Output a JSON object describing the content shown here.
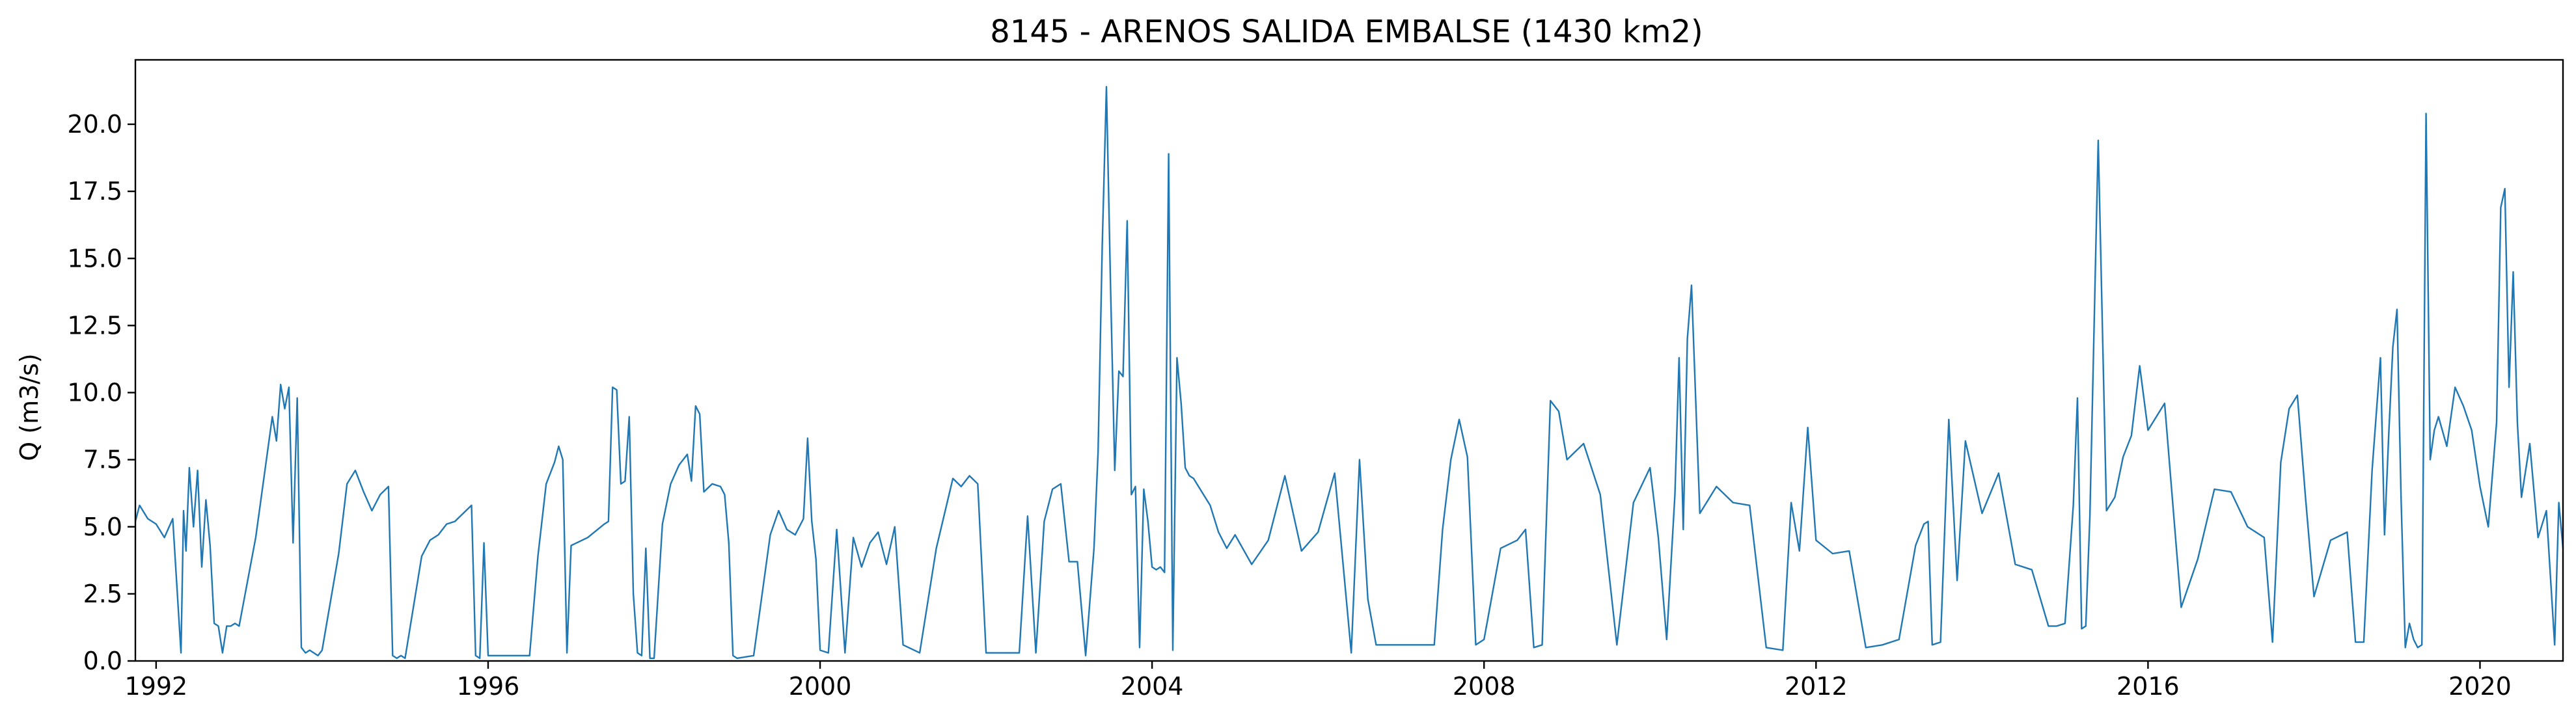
{
  "chart_data": {
    "type": "line",
    "title": "8145 - ARENOS SALIDA EMBALSE (1430 km2)",
    "xlabel": "",
    "ylabel": "Q (m3/s)",
    "xlim": [
      1991.75,
      2021.0
    ],
    "ylim": [
      0.0,
      22.4
    ],
    "xticks": [
      1992,
      1996,
      2000,
      2004,
      2008,
      2012,
      2016,
      2020
    ],
    "xtick_labels": [
      "1992",
      "1996",
      "2000",
      "2004",
      "2008",
      "2012",
      "2016",
      "2020"
    ],
    "yticks": [
      0.0,
      2.5,
      5.0,
      7.5,
      10.0,
      12.5,
      15.0,
      17.5,
      20.0
    ],
    "ytick_labels": [
      "0.0",
      "2.5",
      "5.0",
      "7.5",
      "10.0",
      "12.5",
      "15.0",
      "17.5",
      "20.0"
    ],
    "grid": false,
    "series": [
      {
        "color": "#1f77b4",
        "x": [
          1991.75,
          1991.8,
          1991.9,
          1992.0,
          1992.1,
          1992.2,
          1992.3,
          1992.33,
          1992.36,
          1992.4,
          1992.45,
          1992.5,
          1992.55,
          1992.6,
          1992.65,
          1992.7,
          1992.75,
          1992.8,
          1992.85,
          1992.9,
          1992.95,
          1993.0,
          1993.2,
          1993.4,
          1993.45,
          1993.5,
          1993.55,
          1993.6,
          1993.65,
          1993.7,
          1993.75,
          1993.8,
          1993.85,
          1993.9,
          1993.95,
          1994.0,
          1994.2,
          1994.3,
          1994.4,
          1994.5,
          1994.6,
          1994.7,
          1994.8,
          1994.85,
          1994.9,
          1994.95,
          1995.0,
          1995.2,
          1995.3,
          1995.4,
          1995.5,
          1995.6,
          1995.7,
          1995.8,
          1995.85,
          1995.9,
          1995.95,
          1996.0,
          1996.2,
          1996.5,
          1996.6,
          1996.7,
          1996.8,
          1996.85,
          1996.9,
          1996.95,
          1997.0,
          1997.2,
          1997.4,
          1997.45,
          1997.5,
          1997.55,
          1997.6,
          1997.65,
          1997.7,
          1997.75,
          1997.8,
          1997.85,
          1997.9,
          1997.95,
          1998.0,
          1998.1,
          1998.2,
          1998.3,
          1998.4,
          1998.45,
          1998.5,
          1998.55,
          1998.6,
          1998.7,
          1998.8,
          1998.85,
          1998.9,
          1998.95,
          1999.0,
          1999.2,
          1999.4,
          1999.5,
          1999.6,
          1999.7,
          1999.8,
          1999.85,
          1999.9,
          1999.95,
          2000.0,
          2000.1,
          2000.2,
          2000.3,
          2000.4,
          2000.5,
          2000.6,
          2000.7,
          2000.8,
          2000.9,
          2001.0,
          2001.2,
          2001.4,
          2001.6,
          2001.7,
          2001.8,
          2001.9,
          2002.0,
          2002.2,
          2002.4,
          2002.5,
          2002.6,
          2002.7,
          2002.8,
          2002.9,
          2003.0,
          2003.1,
          2003.2,
          2003.3,
          2003.35,
          2003.4,
          2003.45,
          2003.5,
          2003.55,
          2003.6,
          2003.65,
          2003.7,
          2003.75,
          2003.8,
          2003.85,
          2003.9,
          2003.95,
          2004.0,
          2004.05,
          2004.1,
          2004.15,
          2004.2,
          2004.25,
          2004.3,
          2004.35,
          2004.4,
          2004.45,
          2004.5,
          2004.6,
          2004.7,
          2004.8,
          2004.9,
          2005.0,
          2005.2,
          2005.4,
          2005.6,
          2005.8,
          2006.0,
          2006.2,
          2006.4,
          2006.5,
          2006.6,
          2006.7,
          2006.8,
          2007.0,
          2007.2,
          2007.4,
          2007.5,
          2007.6,
          2007.7,
          2007.8,
          2007.9,
          2008.0,
          2008.2,
          2008.4,
          2008.5,
          2008.6,
          2008.7,
          2008.8,
          2008.9,
          2009.0,
          2009.2,
          2009.4,
          2009.6,
          2009.8,
          2010.0,
          2010.1,
          2010.2,
          2010.3,
          2010.35,
          2010.4,
          2010.45,
          2010.5,
          2010.6,
          2010.8,
          2011.0,
          2011.2,
          2011.4,
          2011.6,
          2011.7,
          2011.8,
          2011.9,
          2012.0,
          2012.2,
          2012.4,
          2012.6,
          2012.8,
          2013.0,
          2013.2,
          2013.3,
          2013.35,
          2013.4,
          2013.5,
          2013.6,
          2013.7,
          2013.8,
          2014.0,
          2014.2,
          2014.4,
          2014.6,
          2014.8,
          2014.9,
          2015.0,
          2015.1,
          2015.15,
          2015.2,
          2015.25,
          2015.3,
          2015.4,
          2015.5,
          2015.6,
          2015.7,
          2015.8,
          2015.9,
          2016.0,
          2016.2,
          2016.4,
          2016.6,
          2016.8,
          2017.0,
          2017.2,
          2017.4,
          2017.5,
          2017.6,
          2017.7,
          2017.8,
          2017.9,
          2018.0,
          2018.2,
          2018.4,
          2018.5,
          2018.6,
          2018.7,
          2018.8,
          2018.85,
          2018.9,
          2018.95,
          2019.0,
          2019.05,
          2019.1,
          2019.15,
          2019.2,
          2019.25,
          2019.3,
          2019.35,
          2019.4,
          2019.45,
          2019.5,
          2019.6,
          2019.7,
          2019.8,
          2019.9,
          2020.0,
          2020.1,
          2020.2,
          2020.25,
          2020.3,
          2020.35,
          2020.4,
          2020.45,
          2020.5,
          2020.6,
          2020.7,
          2020.8,
          2020.9,
          2020.95,
          2021.0
        ],
        "y": [
          5.2,
          5.8,
          5.3,
          5.1,
          4.6,
          5.3,
          0.3,
          5.6,
          4.1,
          7.2,
          5.0,
          7.1,
          3.5,
          6.0,
          4.3,
          1.4,
          1.3,
          0.3,
          1.3,
          1.3,
          1.4,
          1.3,
          4.6,
          9.1,
          8.2,
          10.3,
          9.4,
          10.2,
          4.4,
          9.8,
          0.5,
          0.3,
          0.4,
          0.3,
          0.2,
          0.4,
          4.0,
          6.6,
          7.1,
          6.3,
          5.6,
          6.2,
          6.5,
          0.2,
          0.1,
          0.2,
          0.1,
          3.9,
          4.5,
          4.7,
          5.1,
          5.2,
          5.5,
          5.8,
          0.2,
          0.1,
          4.4,
          0.2,
          0.2,
          0.2,
          3.9,
          6.6,
          7.4,
          8.0,
          7.5,
          0.3,
          4.3,
          4.6,
          5.1,
          5.2,
          10.2,
          10.1,
          6.6,
          6.7,
          9.1,
          2.5,
          0.3,
          0.2,
          4.2,
          0.1,
          0.1,
          5.1,
          6.6,
          7.3,
          7.7,
          6.7,
          9.5,
          9.2,
          6.3,
          6.6,
          6.5,
          6.2,
          4.4,
          0.2,
          0.1,
          0.2,
          4.7,
          5.6,
          4.9,
          4.7,
          5.3,
          8.3,
          5.2,
          3.8,
          0.4,
          0.3,
          4.9,
          0.3,
          4.6,
          3.5,
          4.4,
          4.8,
          3.6,
          5.0,
          0.6,
          0.3,
          4.2,
          6.8,
          6.5,
          6.9,
          6.6,
          0.3,
          0.3,
          0.3,
          5.4,
          0.3,
          5.2,
          6.4,
          6.6,
          3.7,
          3.7,
          0.2,
          4.2,
          7.8,
          15.5,
          21.4,
          13.9,
          7.1,
          10.8,
          10.6,
          16.4,
          6.2,
          6.5,
          0.5,
          6.4,
          5.2,
          3.5,
          3.4,
          3.5,
          3.3,
          18.9,
          0.4,
          11.3,
          9.6,
          7.2,
          6.9,
          6.8,
          6.3,
          5.8,
          4.8,
          4.2,
          4.7,
          3.6,
          4.5,
          6.9,
          4.1,
          4.8,
          7.0,
          0.3,
          7.5,
          2.3,
          0.6,
          0.6,
          0.6,
          0.6,
          0.6,
          4.9,
          7.5,
          9.0,
          7.6,
          0.6,
          0.8,
          4.2,
          4.5,
          4.9,
          0.5,
          0.6,
          9.7,
          9.3,
          7.5,
          8.1,
          6.2,
          0.6,
          5.9,
          7.2,
          4.6,
          0.8,
          6.2,
          11.3,
          4.9,
          12.0,
          14.0,
          5.5,
          6.5,
          5.9,
          5.8,
          0.5,
          0.4,
          5.9,
          4.1,
          8.7,
          4.5,
          4.0,
          4.1,
          0.5,
          0.6,
          0.8,
          4.3,
          5.1,
          5.2,
          0.6,
          0.7,
          9.0,
          3.0,
          8.2,
          5.5,
          7.0,
          3.6,
          3.4,
          1.3,
          1.3,
          1.4,
          5.8,
          9.8,
          1.2,
          1.3,
          5.4,
          19.4,
          5.6,
          6.1,
          7.6,
          8.4,
          11.0,
          8.6,
          9.6,
          2.0,
          3.8,
          6.4,
          6.3,
          5.0,
          4.6,
          0.7,
          7.4,
          9.4,
          9.9,
          6.0,
          2.4,
          4.5,
          4.8,
          0.7,
          0.7,
          7.1,
          11.3,
          4.7,
          8.4,
          11.7,
          13.1,
          6.0,
          0.5,
          1.4,
          0.8,
          0.5,
          0.6,
          20.4,
          7.5,
          8.6,
          9.1,
          8.0,
          10.2,
          9.5,
          8.6,
          6.5,
          5.0,
          8.9,
          16.9,
          17.6,
          10.2,
          14.5,
          8.9,
          6.1,
          8.1,
          4.6,
          5.6,
          0.6,
          5.9,
          4.2
        ]
      }
    ]
  }
}
